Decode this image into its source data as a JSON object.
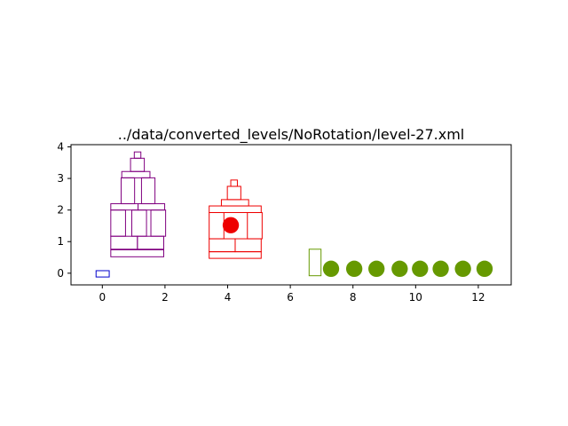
{
  "chart_data": {
    "type": "scatter",
    "title": "../data/converted_levels/NoRotation/level-27.xml",
    "xlabel": "",
    "ylabel": "",
    "xlim": [
      -1.0,
      13.05
    ],
    "ylim": [
      -0.37,
      4.07
    ],
    "xticks": [
      0,
      2,
      4,
      6,
      8,
      10,
      12
    ],
    "yticks": [
      0,
      1,
      2,
      3,
      4
    ],
    "xtick_labels": [
      "0",
      "2",
      "4",
      "6",
      "8",
      "10",
      "12"
    ],
    "ytick_labels": [
      "0",
      "1",
      "2",
      "3",
      "4"
    ],
    "grid": false,
    "colors": {
      "slingshot": "#0000cc",
      "purple_structure": "#800080",
      "red_structure": "#ee0000",
      "birds": "#669900"
    },
    "slingshot": {
      "x0": -0.2,
      "y0": -0.12,
      "x1": 0.22,
      "y1": 0.08
    },
    "purple_blocks": [
      {
        "x0": 0.27,
        "y0": 0.52,
        "x1": 1.96,
        "y1": 0.74
      },
      {
        "x0": 0.27,
        "y0": 0.76,
        "x1": 1.12,
        "y1": 1.17
      },
      {
        "x0": 1.12,
        "y0": 0.76,
        "x1": 1.96,
        "y1": 1.17
      },
      {
        "x0": 0.27,
        "y0": 1.17,
        "x1": 0.74,
        "y1": 2.0
      },
      {
        "x0": 0.94,
        "y0": 1.17,
        "x1": 1.41,
        "y1": 2.0
      },
      {
        "x0": 1.55,
        "y0": 1.17,
        "x1": 2.02,
        "y1": 2.0
      },
      {
        "x0": 0.27,
        "y0": 2.0,
        "x1": 1.14,
        "y1": 2.2
      },
      {
        "x0": 1.14,
        "y0": 2.0,
        "x1": 1.99,
        "y1": 2.2
      },
      {
        "x0": 0.6,
        "y0": 2.2,
        "x1": 1.03,
        "y1": 3.02
      },
      {
        "x0": 1.25,
        "y0": 2.2,
        "x1": 1.68,
        "y1": 3.02
      },
      {
        "x0": 0.62,
        "y0": 3.02,
        "x1": 1.52,
        "y1": 3.22
      },
      {
        "x0": 0.9,
        "y0": 3.22,
        "x1": 1.34,
        "y1": 3.64
      },
      {
        "x0": 1.02,
        "y0": 3.64,
        "x1": 1.23,
        "y1": 3.84
      }
    ],
    "red_blocks": [
      {
        "x0": 3.41,
        "y0": 0.47,
        "x1": 5.07,
        "y1": 0.68
      },
      {
        "x0": 3.41,
        "y0": 0.68,
        "x1": 4.24,
        "y1": 1.09
      },
      {
        "x0": 4.24,
        "y0": 0.68,
        "x1": 5.07,
        "y1": 1.09
      },
      {
        "x0": 3.41,
        "y0": 1.09,
        "x1": 3.88,
        "y1": 1.92
      },
      {
        "x0": 4.63,
        "y0": 1.09,
        "x1": 5.1,
        "y1": 1.92
      },
      {
        "x0": 3.41,
        "y0": 1.92,
        "x1": 5.07,
        "y1": 2.13
      },
      {
        "x0": 3.8,
        "y0": 2.13,
        "x1": 4.67,
        "y1": 2.33
      },
      {
        "x0": 3.99,
        "y0": 2.33,
        "x1": 4.42,
        "y1": 2.75
      },
      {
        "x0": 4.1,
        "y0": 2.75,
        "x1": 4.31,
        "y1": 2.95
      }
    ],
    "red_pig": {
      "x": 4.1,
      "y": 1.52,
      "r": 0.26
    },
    "bird_platform": {
      "x0": 6.6,
      "y0": -0.08,
      "x1": 6.98,
      "y1": 0.76
    },
    "birds": [
      {
        "x": 7.3,
        "y": 0.14,
        "r": 0.26
      },
      {
        "x": 8.04,
        "y": 0.14,
        "r": 0.26
      },
      {
        "x": 8.75,
        "y": 0.14,
        "r": 0.26
      },
      {
        "x": 9.49,
        "y": 0.14,
        "r": 0.26
      },
      {
        "x": 10.14,
        "y": 0.14,
        "r": 0.26
      },
      {
        "x": 10.8,
        "y": 0.14,
        "r": 0.26
      },
      {
        "x": 11.51,
        "y": 0.14,
        "r": 0.26
      },
      {
        "x": 12.2,
        "y": 0.14,
        "r": 0.26
      }
    ]
  }
}
